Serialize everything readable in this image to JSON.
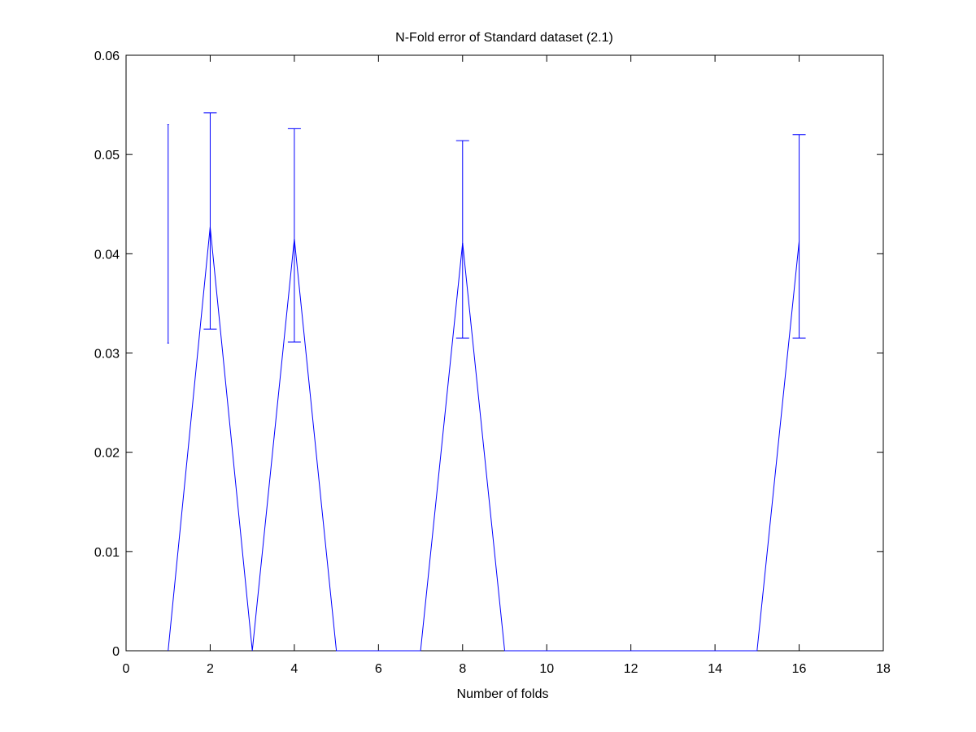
{
  "chart_data": {
    "type": "line",
    "title": "N-Fold error of Standard dataset (2.1)",
    "xlabel": "Number of folds",
    "ylabel": "",
    "xlim": [
      0,
      18
    ],
    "ylim": [
      0,
      0.06
    ],
    "xticks": [
      0,
      2,
      4,
      6,
      8,
      10,
      12,
      14,
      16,
      18
    ],
    "yticks": [
      0,
      0.01,
      0.02,
      0.03,
      0.04,
      0.05,
      0.06
    ],
    "xtick_labels": [
      "0",
      "2",
      "4",
      "6",
      "8",
      "10",
      "12",
      "14",
      "16",
      "18"
    ],
    "ytick_labels": [
      "0",
      "0.01",
      "0.02",
      "0.03",
      "0.04",
      "0.05",
      "0.06"
    ],
    "grid": false,
    "series": [
      {
        "color": "#0000ff",
        "x": [
          1,
          2,
          3,
          4,
          5,
          6,
          7,
          8,
          9,
          10,
          11,
          12,
          13,
          14,
          15,
          16
        ],
        "y": [
          0,
          0.0427,
          0,
          0.0415,
          0,
          0,
          0,
          0.0411,
          0,
          0,
          0,
          0,
          0,
          0,
          0,
          0.0413
        ],
        "error_bars": [
          {
            "x": 1,
            "low": 0.031,
            "high": 0.053
          },
          {
            "x": 2,
            "low": 0.0324,
            "high": 0.0542
          },
          {
            "x": 4,
            "low": 0.0311,
            "high": 0.0526
          },
          {
            "x": 8,
            "low": 0.0315,
            "high": 0.0514
          },
          {
            "x": 16,
            "low": 0.0315,
            "high": 0.052
          }
        ]
      }
    ]
  }
}
